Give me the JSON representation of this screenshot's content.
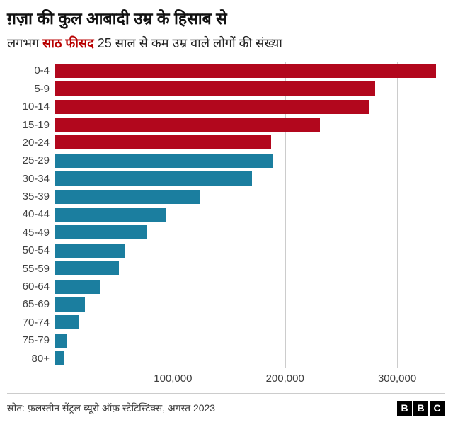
{
  "header": {
    "title": "ग़ज़ा की कुल आबादी उम्र के हिसाब से",
    "subtitle_prefix": "लगभग ",
    "subtitle_highlight": "साठ फीसद",
    "subtitle_rest": " 25 साल से कम उम्र वाले लोगों की संख्या",
    "highlight_color": "#b80000"
  },
  "chart_data": {
    "type": "bar",
    "orientation": "horizontal",
    "categories": [
      "0-4",
      "5-9",
      "10-14",
      "15-19",
      "20-24",
      "25-29",
      "30-34",
      "35-39",
      "40-44",
      "45-49",
      "50-54",
      "55-59",
      "60-64",
      "65-69",
      "70-74",
      "75-79",
      "80+"
    ],
    "values": [
      335000,
      281000,
      276000,
      233000,
      190000,
      191000,
      173000,
      127000,
      98000,
      81000,
      61000,
      56000,
      39000,
      26000,
      21000,
      10000,
      8000
    ],
    "under25_group_count": 5,
    "color_under25": "#b2071d",
    "color_over25": "#1b7e9f",
    "xlim": [
      0,
      341000
    ],
    "xticks": [
      {
        "value": 100000,
        "label": "100,000"
      },
      {
        "value": 200000,
        "label": "200,000"
      },
      {
        "value": 300000,
        "label": "300,000"
      }
    ],
    "grid": true,
    "legend": "none"
  },
  "footer": {
    "source": "स्रोत: फ़लस्तीन सेंट्रल ब्यूरो ऑफ़ स्टेटिस्टिक्स, अगस्त 2023",
    "logo_letters": [
      "B",
      "B",
      "C"
    ]
  }
}
